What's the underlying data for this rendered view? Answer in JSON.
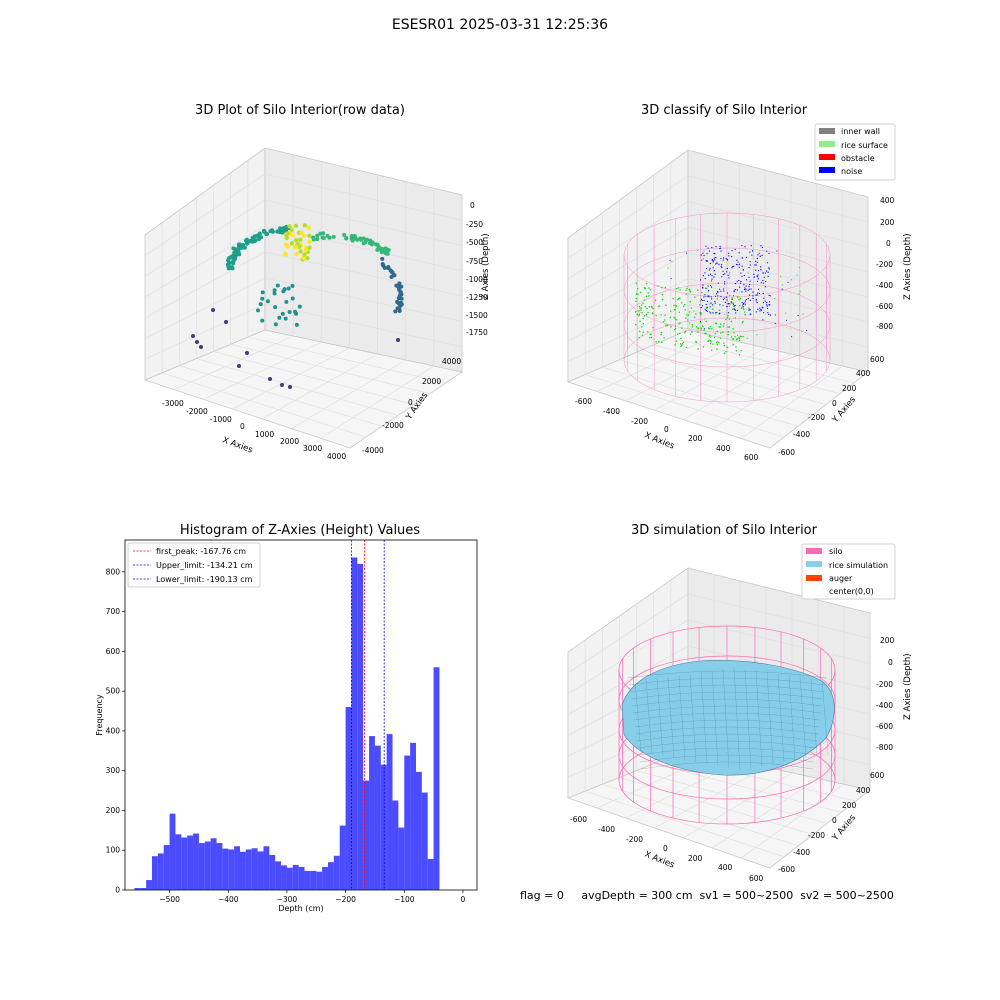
{
  "suptitle": "ESESR01 2025-03-31 12:25:36",
  "panels": {
    "raw": {
      "title": "3D Plot of Silo Interior(row data)",
      "xlabel": "X Axies",
      "ylabel": "Y Axies",
      "zlabel": "Z Axies (Depth)",
      "xticks": [
        "-3000",
        "-2000",
        "-1000",
        "0",
        "1000",
        "2000",
        "3000",
        "4000"
      ],
      "yticks": [
        "-4000",
        "-2000",
        "0",
        "2000",
        "4000"
      ],
      "zticks": [
        "0",
        "-250",
        "-500",
        "-750",
        "-1000",
        "-1250",
        "-1500",
        "-1750"
      ]
    },
    "classify": {
      "title": "3D classify of Silo Interior",
      "xlabel": "X Axies",
      "ylabel": "Y Axies",
      "zlabel": "Z Axies (Depth)",
      "xticks": [
        "-600",
        "-400",
        "-200",
        "0",
        "200",
        "400",
        "600"
      ],
      "yticks": [
        "-600",
        "-400",
        "-200",
        "0",
        "200",
        "400",
        "600"
      ],
      "zticks": [
        "400",
        "200",
        "0",
        "-200",
        "-400",
        "-600",
        "-800"
      ],
      "legend": [
        {
          "label": "inner wall",
          "color": "#808080"
        },
        {
          "label": "rice surface",
          "color": "#90ee90"
        },
        {
          "label": "obstacle",
          "color": "#ff0000"
        },
        {
          "label": "noise",
          "color": "#0000ff"
        }
      ]
    },
    "simulation": {
      "title": "3D simulation of Silo Interior",
      "xlabel": "X Axies",
      "ylabel": "Y Axies",
      "zlabel": "Z Axies (Depth)",
      "xticks": [
        "-600",
        "-400",
        "-200",
        "0",
        "200",
        "400",
        "600"
      ],
      "yticks": [
        "-600",
        "-400",
        "-200",
        "0",
        "200",
        "400",
        "600"
      ],
      "zticks": [
        "200",
        "0",
        "-200",
        "-400",
        "-600",
        "-800"
      ],
      "legend": [
        {
          "label": "silo",
          "color": "#ff69b4"
        },
        {
          "label": "rice simulation",
          "color": "#87ceeb"
        },
        {
          "label": "auger",
          "color": "#ff4500"
        },
        {
          "label": "center(0,0)",
          "color": "#ffffff"
        }
      ]
    }
  },
  "status_line": "flag = 0     avgDepth = 300 cm  sv1 = 500~2500  sv2 = 500~2500",
  "chart_data": {
    "type": "bar",
    "title": "Histogram of Z-Axies (Height) Values",
    "xlabel": "Depth (cm)",
    "ylabel": "Frequency",
    "xlim": [
      -576,
      24
    ],
    "ylim": [
      0,
      880
    ],
    "xticks": [
      -500,
      -400,
      -300,
      -200,
      -100,
      0
    ],
    "yticks": [
      0,
      100,
      200,
      300,
      400,
      500,
      600,
      700,
      800
    ],
    "bar_color": "#0000ff",
    "bin_width": 10,
    "x": [
      -555,
      -545,
      -535,
      -525,
      -515,
      -505,
      -495,
      -485,
      -475,
      -465,
      -455,
      -445,
      -435,
      -425,
      -415,
      -405,
      -395,
      -385,
      -375,
      -365,
      -355,
      -345,
      -335,
      -325,
      -315,
      -305,
      -295,
      -285,
      -275,
      -265,
      -255,
      -245,
      -235,
      -225,
      -215,
      -205,
      -195,
      -185,
      -175,
      -165,
      -155,
      -145,
      -135,
      -125,
      -115,
      -105,
      -95,
      -85,
      -75,
      -65,
      -55,
      -45,
      -35,
      -25,
      -15,
      -5
    ],
    "values": [
      5,
      5,
      25,
      85,
      92,
      113,
      192,
      140,
      132,
      137,
      142,
      118,
      122,
      130,
      118,
      104,
      102,
      110,
      96,
      102,
      105,
      97,
      110,
      88,
      72,
      62,
      56,
      63,
      58,
      48,
      48,
      46,
      58,
      70,
      86,
      162,
      460,
      836,
      820,
      275,
      387,
      363,
      315,
      392,
      225,
      157,
      338,
      370,
      297,
      245,
      78,
      560,
      0,
      0,
      0,
      0
    ],
    "lines": [
      {
        "label": "first_peak: -167.76 cm",
        "x": -167.76,
        "color": "#ff0000"
      },
      {
        "label": "Upper_limit: -134.21 cm",
        "x": -134.21,
        "color": "#0000ff"
      },
      {
        "label": "Lower_limit: -190.13 cm",
        "x": -190.13,
        "color": "#0000ff"
      }
    ]
  }
}
